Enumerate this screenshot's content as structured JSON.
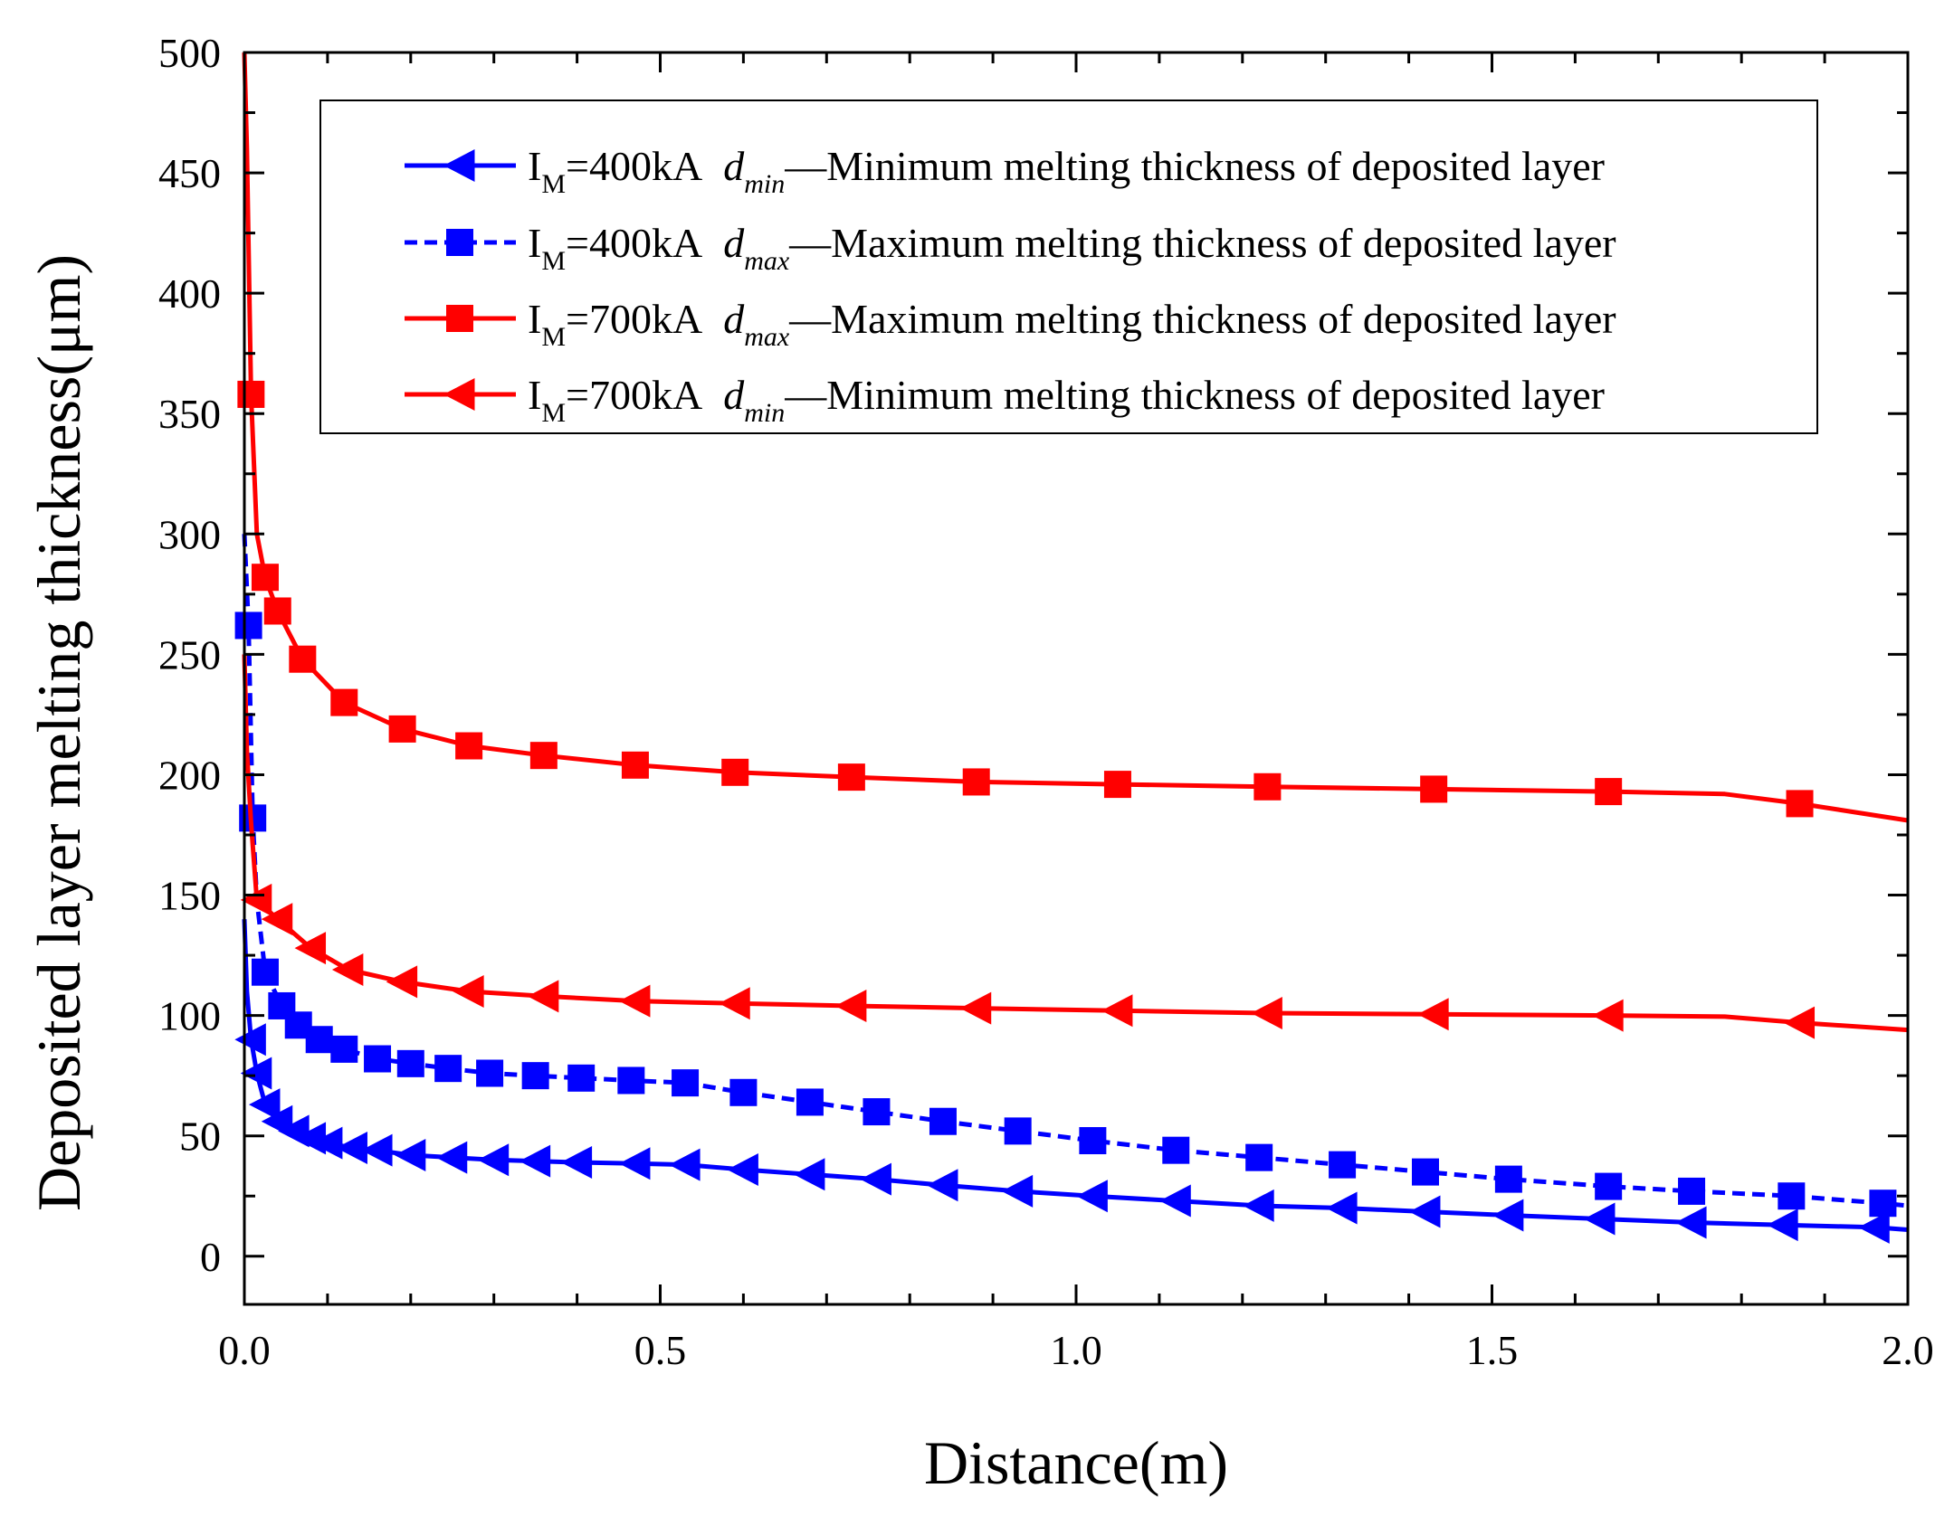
{
  "chart_data": {
    "type": "line",
    "title": "",
    "xlabel": "Distance(m)",
    "ylabel": "Deposited layer melting thickness(μm)",
    "xlim": [
      0,
      2.0
    ],
    "ylim": [
      -20,
      500
    ],
    "x_ticks": [
      "0.0",
      "0.5",
      "1.0",
      "1.5",
      "2.0"
    ],
    "x_tick_values": [
      0,
      0.5,
      1.0,
      1.5,
      2.0
    ],
    "y_ticks": [
      "0",
      "50",
      "100",
      "150",
      "200",
      "250",
      "300",
      "350",
      "400",
      "450",
      "500"
    ],
    "y_tick_values": [
      0,
      50,
      100,
      150,
      200,
      250,
      300,
      350,
      400,
      450,
      500
    ],
    "legend_position": "top-right",
    "series": [
      {
        "name": "IM=400kA dmin—Minimum melting thickness of deposited layer",
        "legend": {
          "prefix": "I",
          "sub1": "M",
          "current": "=400kA",
          "d": "d",
          "sub2": "min",
          "desc": "—Minimum melting thickness of deposited layer"
        },
        "color": "#0000ff",
        "dash": "solid",
        "marker": "triangle-left",
        "x": [
          0.0,
          0.003,
          0.008,
          0.015,
          0.025,
          0.04,
          0.06,
          0.08,
          0.1,
          0.13,
          0.16,
          0.2,
          0.25,
          0.3,
          0.35,
          0.4,
          0.47,
          0.53,
          0.6,
          0.68,
          0.76,
          0.84,
          0.93,
          1.02,
          1.12,
          1.22,
          1.32,
          1.42,
          1.52,
          1.63,
          1.74,
          1.85,
          1.96,
          2.0
        ],
        "y": [
          140,
          110,
          90,
          76,
          63,
          56,
          52,
          49,
          47,
          45,
          44,
          42,
          41,
          40,
          39.5,
          39,
          38.5,
          38,
          36,
          34,
          32,
          29.5,
          27,
          25,
          23,
          21,
          20,
          18.5,
          17,
          15.5,
          14,
          13,
          12,
          11
        ],
        "marker_indices": [
          2,
          3,
          4,
          5,
          6,
          7,
          8,
          9,
          10,
          11,
          12,
          13,
          14,
          15,
          16,
          17,
          18,
          19,
          20,
          21,
          22,
          23,
          24,
          25,
          26,
          27,
          28,
          29,
          30,
          31,
          32
        ]
      },
      {
        "name": "IM=400kA dmax—Maximum melting thickness of deposited layer",
        "legend": {
          "prefix": "I",
          "sub1": "M",
          "current": "=400kA",
          "d": "d",
          "sub2": "max",
          "desc": "—Maximum melting thickness of deposited layer"
        },
        "color": "#0000ff",
        "dash": "dashed",
        "marker": "square",
        "x": [
          0.0,
          0.005,
          0.01,
          0.015,
          0.025,
          0.045,
          0.065,
          0.09,
          0.12,
          0.16,
          0.2,
          0.245,
          0.295,
          0.35,
          0.405,
          0.465,
          0.53,
          0.6,
          0.68,
          0.76,
          0.84,
          0.93,
          1.02,
          1.12,
          1.22,
          1.32,
          1.42,
          1.52,
          1.64,
          1.74,
          1.86,
          1.97,
          2.0
        ],
        "y": [
          300,
          262,
          182,
          148,
          118,
          104,
          96,
          90,
          86,
          82,
          80,
          78,
          76,
          75,
          74,
          73,
          72,
          68,
          64,
          60,
          56,
          52,
          48,
          44,
          41,
          38,
          35,
          32,
          29,
          27,
          25,
          22,
          21
        ],
        "marker_indices": [
          1,
          2,
          4,
          5,
          6,
          7,
          8,
          9,
          10,
          11,
          12,
          13,
          14,
          15,
          16,
          17,
          18,
          19,
          20,
          21,
          22,
          23,
          24,
          25,
          26,
          27,
          28,
          29,
          30,
          31
        ]
      },
      {
        "name": "IM=700kA dmax—Maximum melting thickness of deposited layer",
        "legend": {
          "prefix": "I",
          "sub1": "M",
          "current": "=700kA",
          "d": "d",
          "sub2": "max",
          "desc": "—Maximum melting thickness of deposited layer"
        },
        "color": "#ff0000",
        "dash": "solid",
        "marker": "square",
        "x": [
          0.0,
          0.003,
          0.008,
          0.015,
          0.025,
          0.04,
          0.07,
          0.12,
          0.19,
          0.27,
          0.36,
          0.47,
          0.59,
          0.73,
          0.88,
          1.05,
          1.23,
          1.43,
          1.64,
          1.78,
          1.87,
          2.0
        ],
        "y": [
          500,
          460,
          358,
          300,
          282,
          268,
          248,
          230,
          219,
          212,
          208,
          204,
          201,
          199,
          197,
          196,
          195,
          194,
          193,
          192,
          188,
          181
        ],
        "marker_indices": [
          2,
          4,
          5,
          6,
          7,
          8,
          9,
          10,
          11,
          12,
          13,
          14,
          15,
          16,
          17,
          18,
          20
        ]
      },
      {
        "name": "IM=700kA dmin—Minimum melting thickness of deposited layer",
        "legend": {
          "prefix": "I",
          "sub1": "M",
          "current": "=700kA",
          "d": "d",
          "sub2": "min",
          "desc": "—Minimum melting thickness of deposited layer"
        },
        "color": "#ff0000",
        "dash": "solid",
        "marker": "triangle-left",
        "x": [
          0.0,
          0.003,
          0.008,
          0.015,
          0.04,
          0.08,
          0.125,
          0.19,
          0.27,
          0.36,
          0.47,
          0.59,
          0.73,
          0.88,
          1.05,
          1.23,
          1.43,
          1.64,
          1.78,
          1.87,
          2.0
        ],
        "y": [
          250,
          210,
          180,
          148,
          140,
          128,
          119,
          114,
          110,
          108,
          106,
          105,
          104,
          103,
          102,
          101,
          100.5,
          100,
          99.5,
          97,
          94
        ],
        "marker_indices": [
          3,
          4,
          5,
          6,
          7,
          8,
          9,
          10,
          11,
          12,
          13,
          14,
          15,
          16,
          17,
          19
        ]
      }
    ]
  }
}
